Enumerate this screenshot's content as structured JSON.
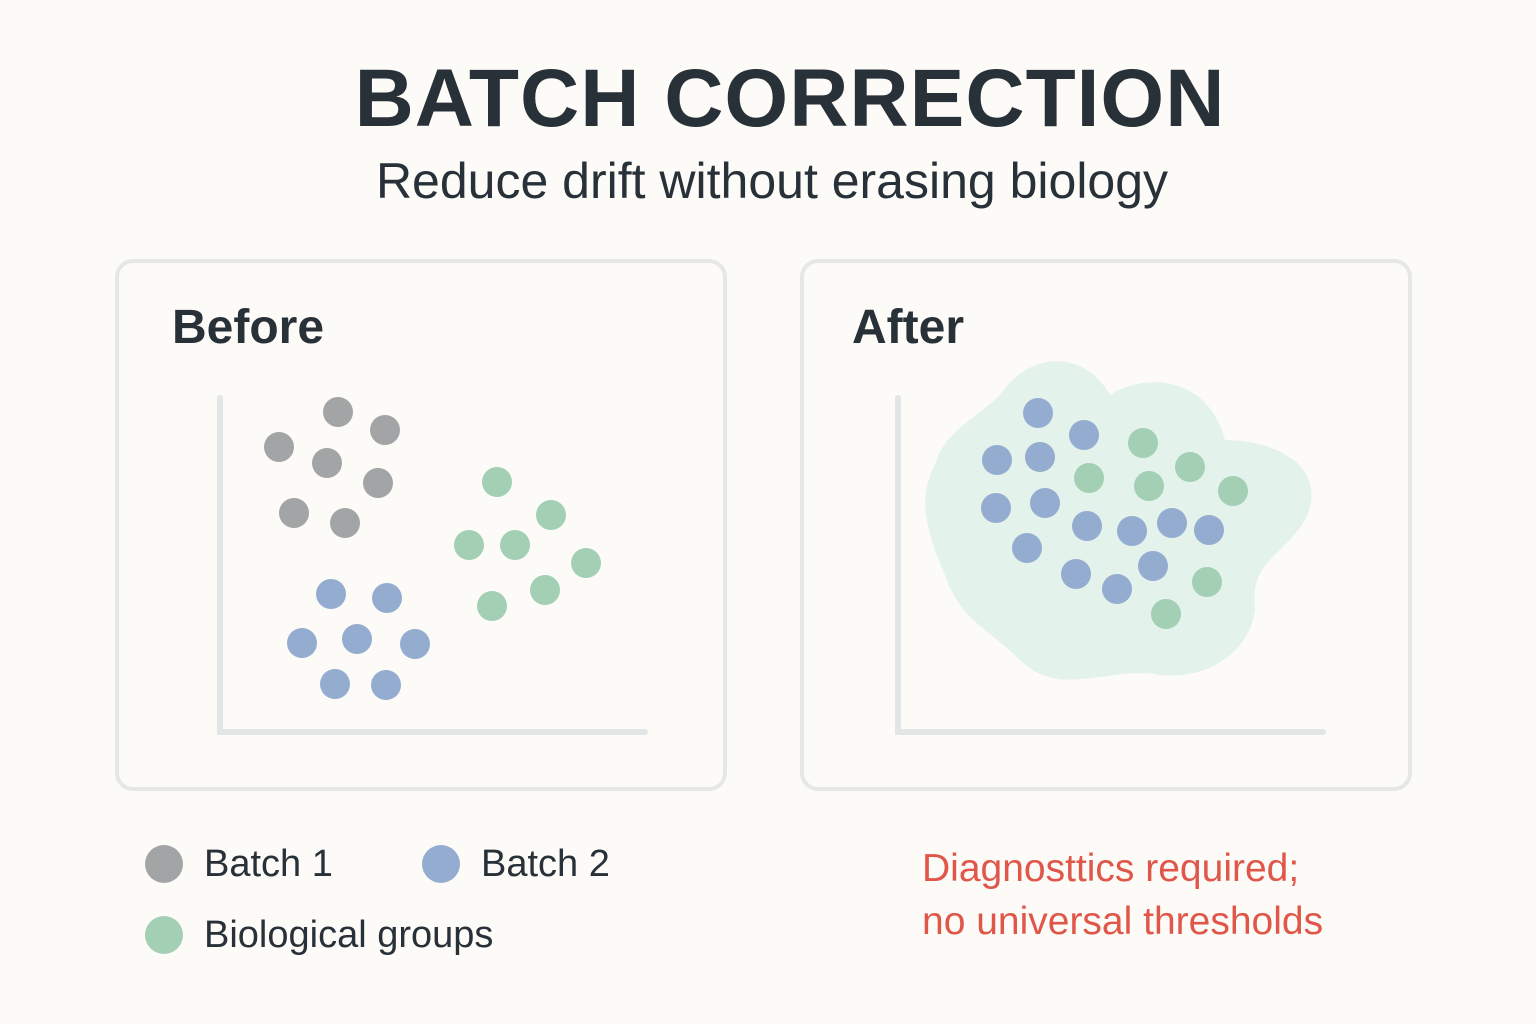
{
  "header": {
    "title": "BATCH CORRECTION",
    "subtitle": "Reduce drift without erasing biology"
  },
  "panels": {
    "before": {
      "title": "Before"
    },
    "after": {
      "title": "After"
    }
  },
  "legend": [
    {
      "label": "Batch 1",
      "color": "#a3a4a6"
    },
    {
      "label": "Batch 2",
      "color": "#94acd0"
    },
    {
      "label": "Biological groups",
      "color": "#a3cfb5"
    }
  ],
  "colors": {
    "blob": "#e3f2ea",
    "axis": "#e3e6e6",
    "note": "#e0574a"
  },
  "note": {
    "line1": "Diagnosttics required;",
    "line2": "no universal thresholds"
  }
}
